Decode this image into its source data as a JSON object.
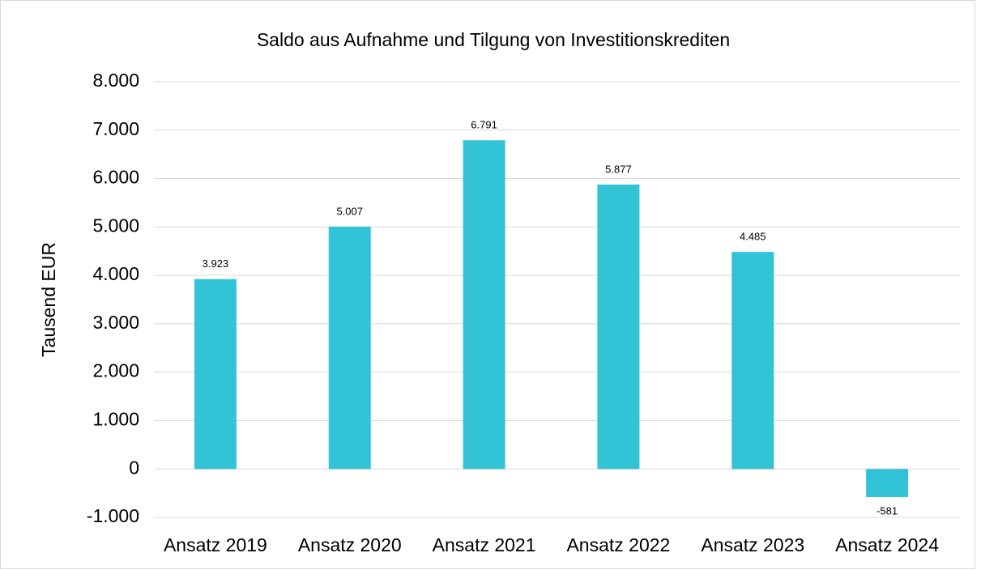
{
  "chart_data": {
    "type": "bar",
    "title": "Saldo aus Aufnahme und Tilgung von Investitionskrediten",
    "y_label": "Tausend EUR",
    "categories": [
      "Ansatz 2019",
      "Ansatz 2020",
      "Ansatz 2021",
      "Ansatz 2022",
      "Ansatz 2023",
      "Ansatz 2024"
    ],
    "values": [
      3923,
      5007,
      6791,
      5877,
      4485,
      -581
    ],
    "value_labels": [
      "3.923",
      "5.007",
      "6.791",
      "5.877",
      "4.485",
      "-581"
    ],
    "color": "#33c3d6",
    "ylim": [
      -1000,
      8000
    ],
    "yticks": [
      {
        "value": -1000,
        "label": "-1.000"
      },
      0,
      {
        "value": 1000,
        "label": "1.000"
      },
      {
        "value": 2000,
        "label": "2.000"
      },
      {
        "value": 3000,
        "label": "3.000"
      },
      {
        "value": 4000,
        "label": "4.000"
      },
      {
        "value": 5000,
        "label": "5.000"
      },
      {
        "value": 6000,
        "label": "6.000"
      },
      {
        "value": 7000,
        "label": "7.000"
      },
      {
        "value": 8000,
        "label": "8.000"
      }
    ],
    "grid": true
  }
}
